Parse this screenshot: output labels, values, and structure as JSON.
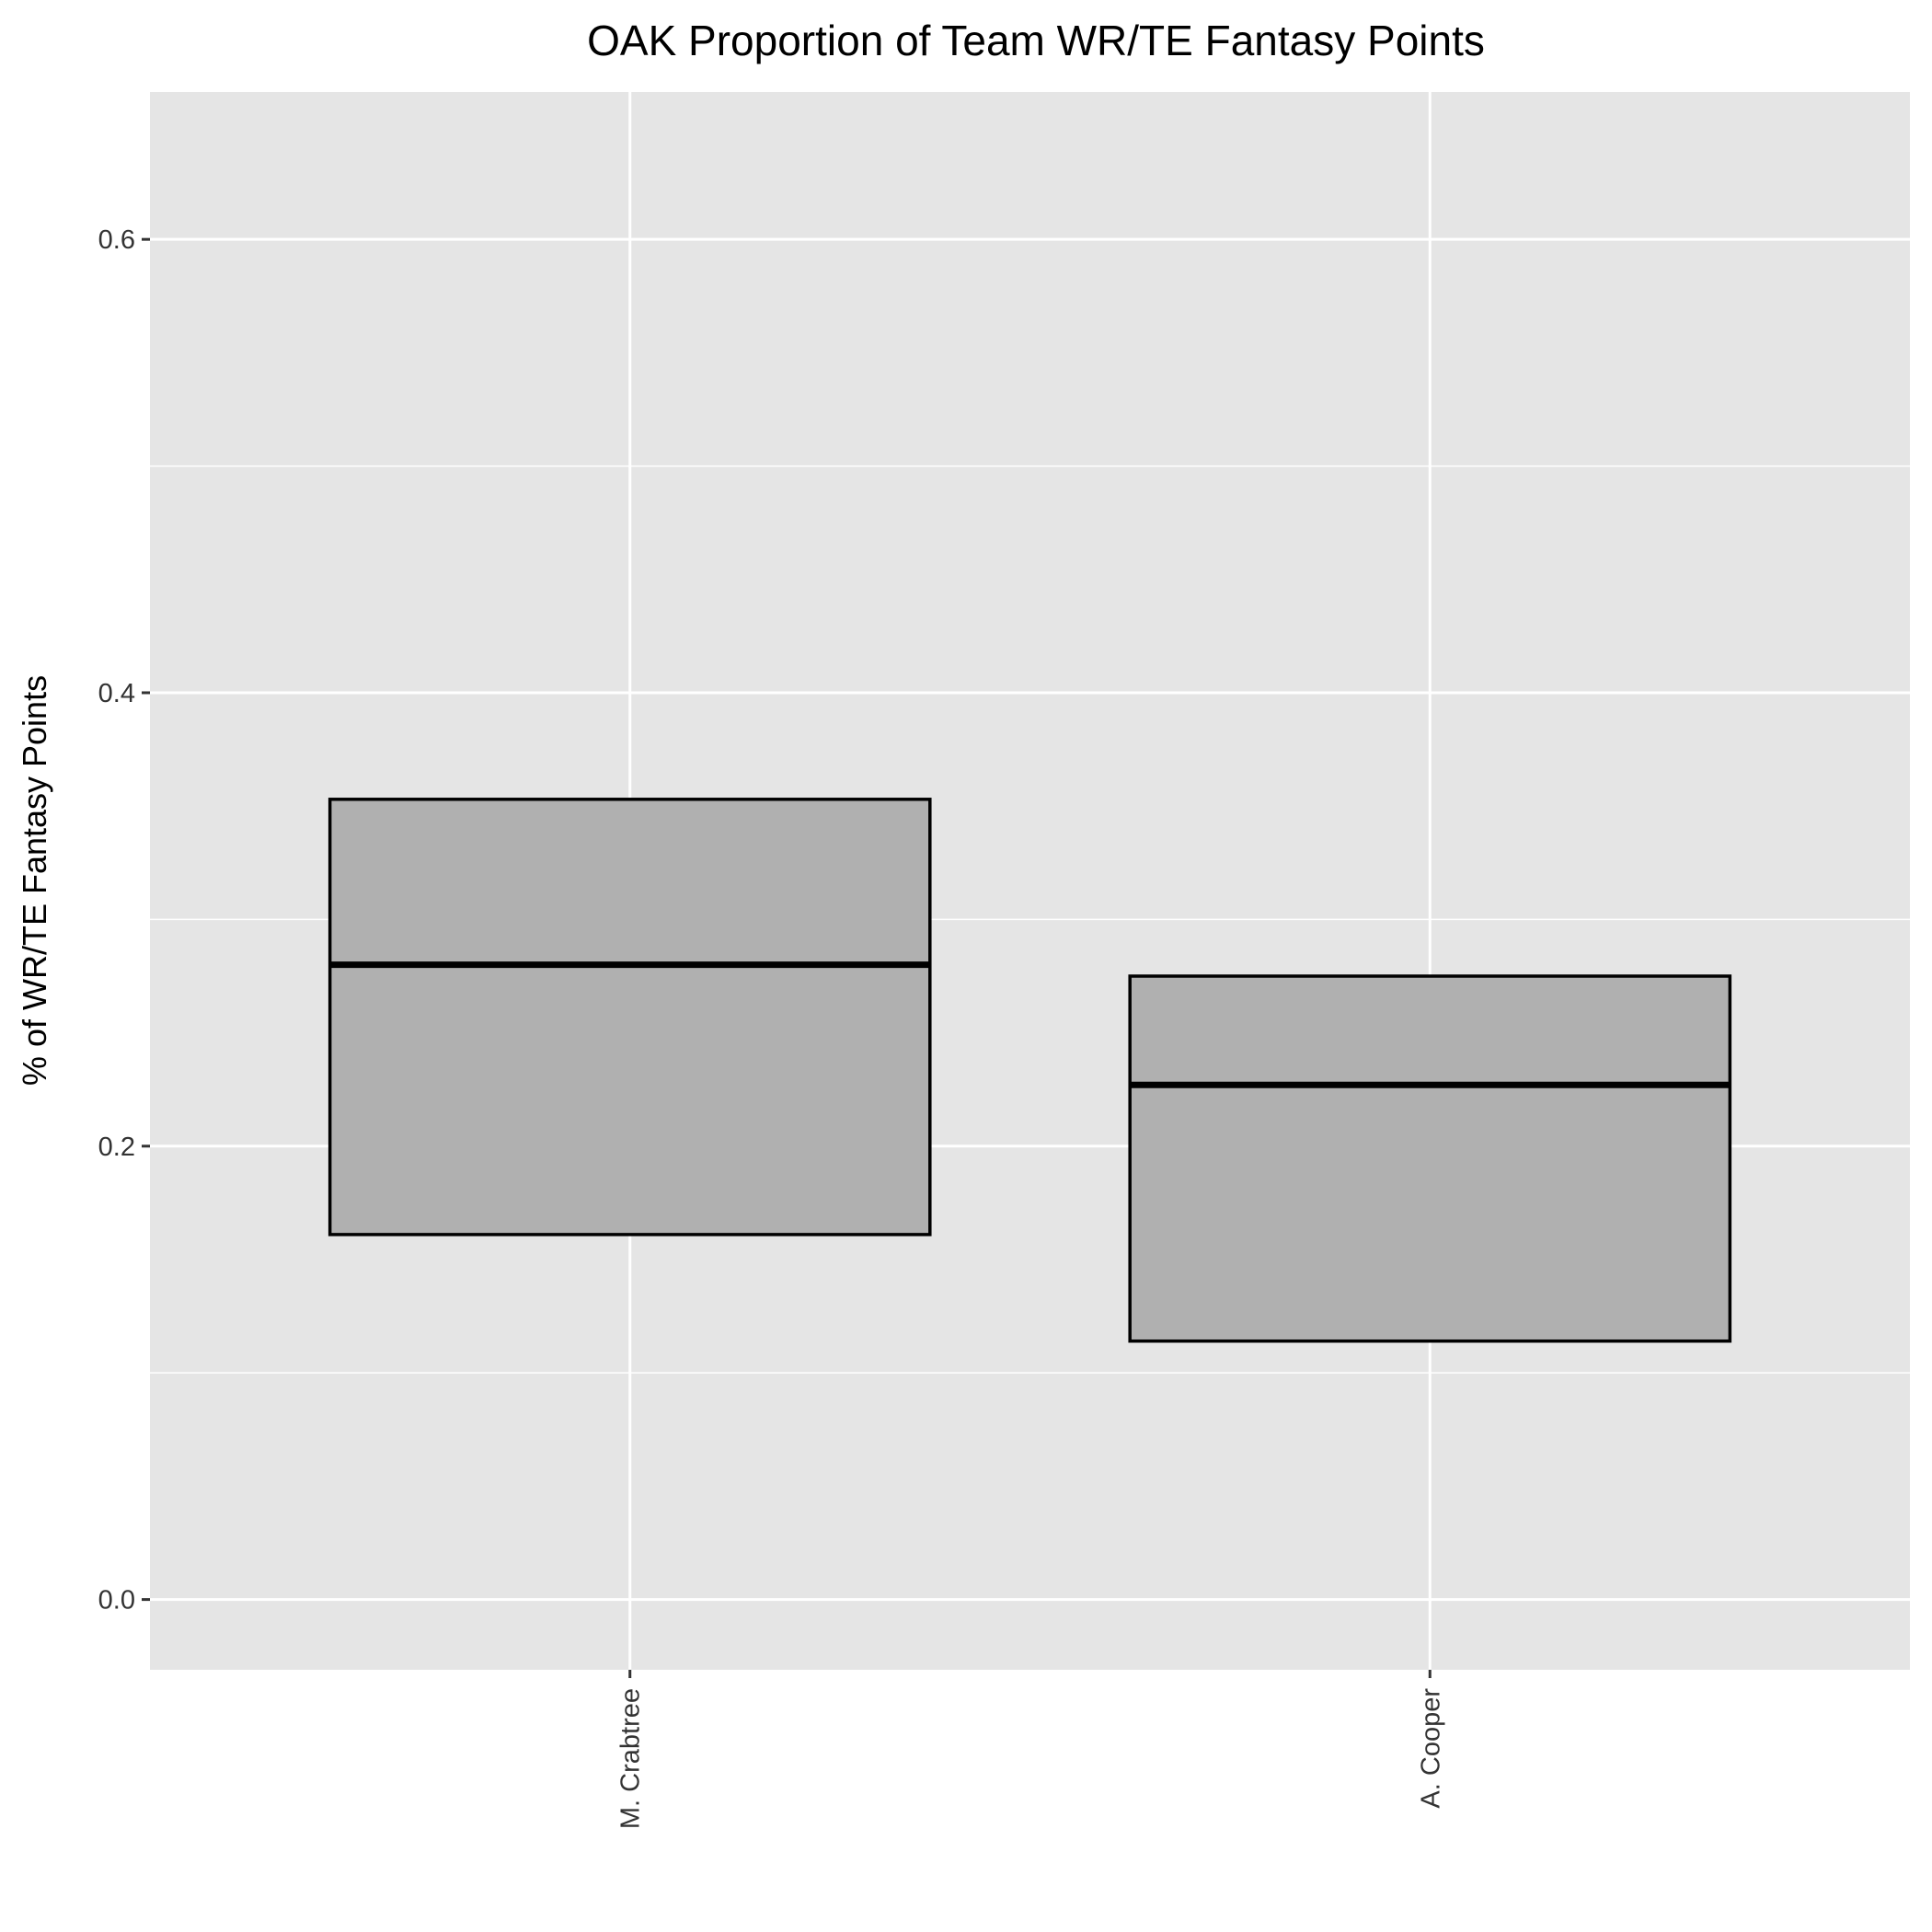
{
  "chart_data": {
    "type": "box",
    "title": "OAK Proportion of Team WR/TE Fantasy Points",
    "xlabel": "",
    "ylabel": "% of WR/TE Fantasy Points",
    "categories": [
      "M. Crabtree",
      "A. Cooper"
    ],
    "boxes": [
      {
        "category": "M. Crabtree",
        "q1": 0.161,
        "median": 0.28,
        "q3": 0.353
      },
      {
        "category": "A. Cooper",
        "q1": 0.114,
        "median": 0.227,
        "q3": 0.275
      }
    ],
    "y_ticks": [
      0.0,
      0.2,
      0.4,
      0.6
    ],
    "y_tick_labels": [
      "0.0",
      "0.2",
      "0.4",
      "0.6"
    ],
    "ylim": [
      -0.031,
      0.665
    ],
    "grid": true,
    "legend": "none",
    "colors": {
      "panel_background": "#e5e5e5",
      "grid": "#ffffff",
      "box_fill": "#b0b0b0",
      "box_outline": "#000000"
    }
  }
}
